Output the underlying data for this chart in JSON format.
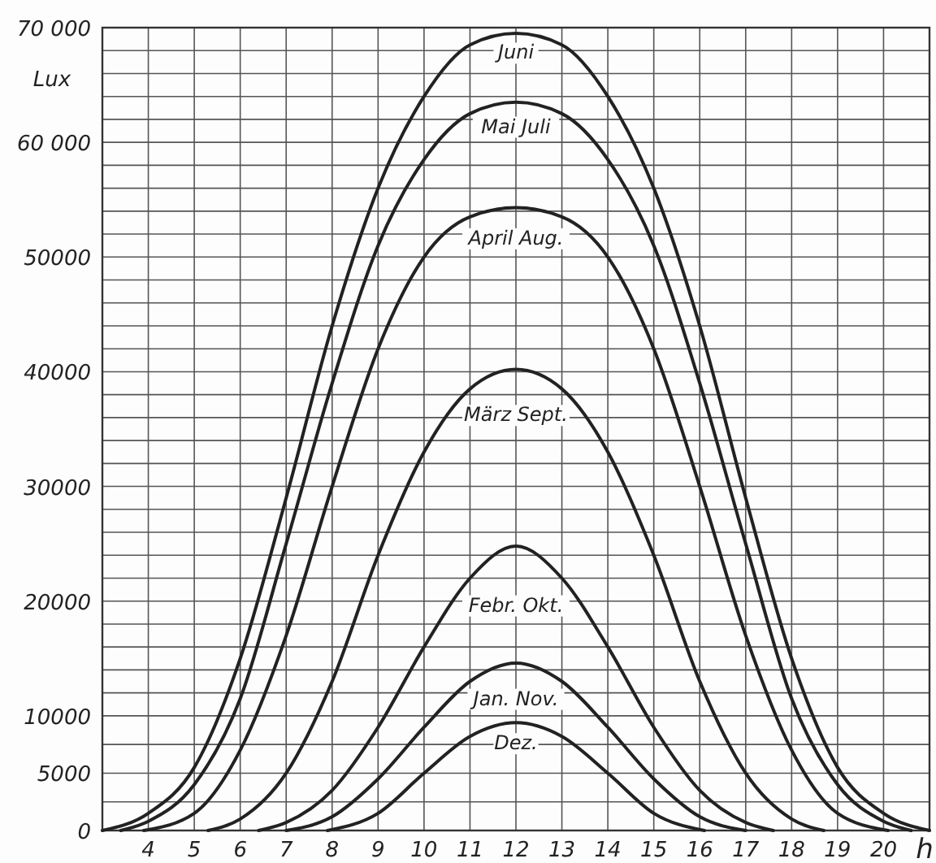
{
  "chart_data": {
    "type": "line",
    "xlabel": "h",
    "ylabel": "Lux",
    "xlim": [
      3,
      21
    ],
    "ylim": [
      0,
      70000
    ],
    "xticks": [
      4,
      5,
      6,
      7,
      8,
      9,
      10,
      11,
      12,
      13,
      14,
      15,
      16,
      17,
      18,
      19,
      20
    ],
    "yticks": [
      0,
      {
        "value": 2500,
        "label": null
      },
      5000,
      {
        "value": 7500,
        "label": null
      },
      10000,
      {
        "value": 12000,
        "label": null
      },
      {
        "value": 14000,
        "label": null
      },
      {
        "value": 16000,
        "label": null
      },
      {
        "value": 18000,
        "label": null
      },
      20000,
      {
        "value": 22000,
        "label": null
      },
      {
        "value": 24000,
        "label": null
      },
      {
        "value": 26000,
        "label": null
      },
      {
        "value": 28000,
        "label": null
      },
      30000,
      {
        "value": 32000,
        "label": null
      },
      {
        "value": 34000,
        "label": null
      },
      {
        "value": 36000,
        "label": null
      },
      {
        "value": 38000,
        "label": null
      },
      40000,
      {
        "value": 42000,
        "label": null
      },
      {
        "value": 44000,
        "label": null
      },
      {
        "value": 46000,
        "label": null
      },
      {
        "value": 48000,
        "label": null
      },
      50000,
      {
        "value": 52000,
        "label": null
      },
      {
        "value": 54000,
        "label": null
      },
      {
        "value": 56000,
        "label": null
      },
      {
        "value": 58000,
        "label": null
      },
      {
        "value": 60000,
        "label": "60 000"
      },
      {
        "value": 62000,
        "label": null
      },
      {
        "value": 64000,
        "label": null
      },
      {
        "value": 66000,
        "label": null
      },
      {
        "value": 68000,
        "label": null
      },
      {
        "value": 70000,
        "label": "70 000"
      }
    ],
    "grid": true,
    "marker": "none",
    "line_style": "solid",
    "series": [
      {
        "name": "Juni",
        "color": "#222222",
        "x": [
          3,
          4,
          5,
          6,
          7,
          8,
          9,
          10,
          11,
          12,
          13,
          14,
          15,
          16,
          17,
          18,
          19,
          20,
          21
        ],
        "values": [
          0,
          1500,
          5500,
          15000,
          29000,
          44000,
          56000,
          64000,
          68500,
          69500,
          68500,
          64000,
          56000,
          44000,
          29000,
          15000,
          5500,
          1500,
          0
        ]
      },
      {
        "name": "Mai Juli",
        "color": "#222222",
        "x": [
          3.4,
          4,
          5,
          6,
          7,
          8,
          9,
          10,
          11,
          12,
          13,
          14,
          15,
          16,
          17,
          18,
          19,
          20,
          20.6
        ],
        "values": [
          0,
          800,
          4000,
          11500,
          25000,
          39000,
          51000,
          58500,
          62500,
          63500,
          62500,
          58500,
          51000,
          39000,
          25000,
          11500,
          4000,
          800,
          0
        ]
      },
      {
        "name": "April Aug.",
        "color": "#222222",
        "x": [
          3.9,
          5,
          6,
          7,
          8,
          9,
          10,
          11,
          12,
          13,
          14,
          15,
          16,
          17,
          18,
          19,
          20.1
        ],
        "values": [
          0,
          1500,
          7000,
          17000,
          30000,
          42000,
          50000,
          53500,
          54300,
          53500,
          50000,
          42000,
          30000,
          17000,
          7000,
          1500,
          0
        ]
      },
      {
        "name": "März Sept.",
        "color": "#222222",
        "x": [
          5.3,
          6,
          7,
          8,
          9,
          10,
          11,
          12,
          13,
          14,
          15,
          16,
          17,
          18,
          18.7
        ],
        "values": [
          0,
          1000,
          5000,
          13000,
          24000,
          33000,
          38500,
          40200,
          38500,
          33000,
          24000,
          13000,
          5000,
          1000,
          0
        ]
      },
      {
        "name": "Febr. Okt.",
        "color": "#222222",
        "x": [
          6.4,
          7,
          8,
          9,
          10,
          11,
          12,
          13,
          14,
          15,
          16,
          17,
          17.6
        ],
        "values": [
          0,
          700,
          3500,
          9000,
          16000,
          22000,
          24800,
          22000,
          16000,
          9000,
          3500,
          700,
          0
        ]
      },
      {
        "name": "Jan. Nov.",
        "color": "#222222",
        "x": [
          7,
          8,
          9,
          10,
          11,
          12,
          13,
          14,
          15,
          16,
          17
        ],
        "values": [
          0,
          1200,
          4500,
          9000,
          13000,
          14600,
          13000,
          9000,
          4500,
          1200,
          0
        ]
      },
      {
        "name": "Dez.",
        "color": "#222222",
        "x": [
          7.9,
          9,
          10,
          11,
          12,
          13,
          14,
          15,
          16.1
        ],
        "values": [
          0,
          1500,
          5000,
          8200,
          9400,
          8200,
          5000,
          1500,
          0
        ]
      }
    ]
  }
}
